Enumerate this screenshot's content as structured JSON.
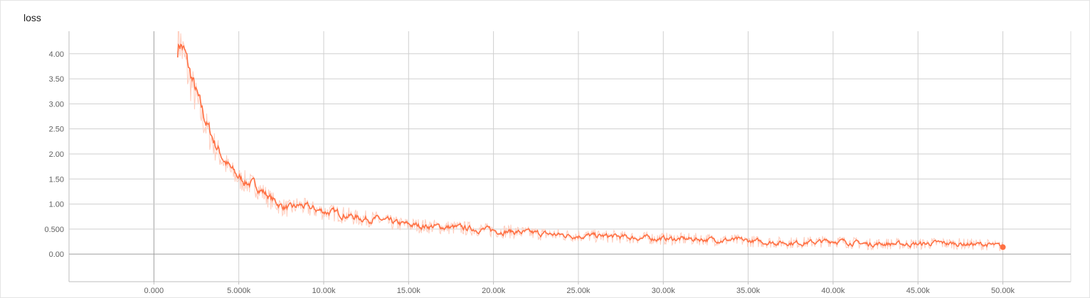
{
  "chart_data": {
    "type": "line",
    "title": "loss",
    "xlabel": "",
    "ylabel": "",
    "xlim": [
      -5000,
      54000
    ],
    "ylim": [
      -0.55,
      4.45
    ],
    "x_ticks": [
      0,
      5000,
      10000,
      15000,
      20000,
      25000,
      30000,
      35000,
      40000,
      45000,
      50000
    ],
    "x_tick_labels": [
      "0.000",
      "5.000k",
      "10.00k",
      "15.00k",
      "20.00k",
      "25.00k",
      "30.00k",
      "35.00k",
      "40.00k",
      "45.00k",
      "50.00k"
    ],
    "y_ticks": [
      0,
      0.5,
      1,
      1.5,
      2,
      2.5,
      3,
      3.5,
      4
    ],
    "y_tick_labels": [
      "0.00",
      "0.500",
      "1.00",
      "1.50",
      "2.00",
      "2.50",
      "3.00",
      "3.50",
      "4.00"
    ],
    "grid": true,
    "colors": {
      "line": "#ff7043",
      "raw": "#ffccbc",
      "grid": "#cfcfcf",
      "zero_axis": "#9e9e9e"
    },
    "series": [
      {
        "x": [
          1400,
          1600,
          1800,
          2000,
          2300,
          2600,
          3000,
          3500,
          4000,
          4500,
          5000,
          5500,
          6000,
          6500,
          7000,
          7500,
          8000,
          8500,
          9000,
          9500,
          10000,
          11000,
          12000,
          13000,
          14000,
          15000,
          16000,
          17000,
          18000,
          19000,
          20000,
          21000,
          22000,
          23000,
          24000,
          25000,
          26000,
          27000,
          28000,
          29000,
          30000,
          31000,
          32000,
          33000,
          34000,
          35000,
          36000,
          37000,
          38000,
          39000,
          40000,
          41000,
          42000,
          43000,
          44000,
          45000,
          46000,
          47000,
          48000,
          49000,
          50000
        ],
        "y": [
          4.45,
          4.15,
          3.9,
          3.6,
          3.3,
          2.95,
          2.6,
          2.2,
          1.9,
          1.65,
          1.5,
          1.42,
          1.35,
          1.2,
          1.05,
          0.95,
          0.9,
          0.98,
          0.92,
          0.88,
          0.85,
          0.8,
          0.72,
          0.7,
          0.62,
          0.58,
          0.56,
          0.54,
          0.52,
          0.5,
          0.47,
          0.45,
          0.42,
          0.4,
          0.38,
          0.37,
          0.36,
          0.35,
          0.33,
          0.32,
          0.31,
          0.3,
          0.3,
          0.29,
          0.28,
          0.26,
          0.24,
          0.23,
          0.23,
          0.24,
          0.27,
          0.23,
          0.2,
          0.21,
          0.2,
          0.2,
          0.22,
          0.21,
          0.2,
          0.19,
          0.14
        ]
      }
    ]
  }
}
